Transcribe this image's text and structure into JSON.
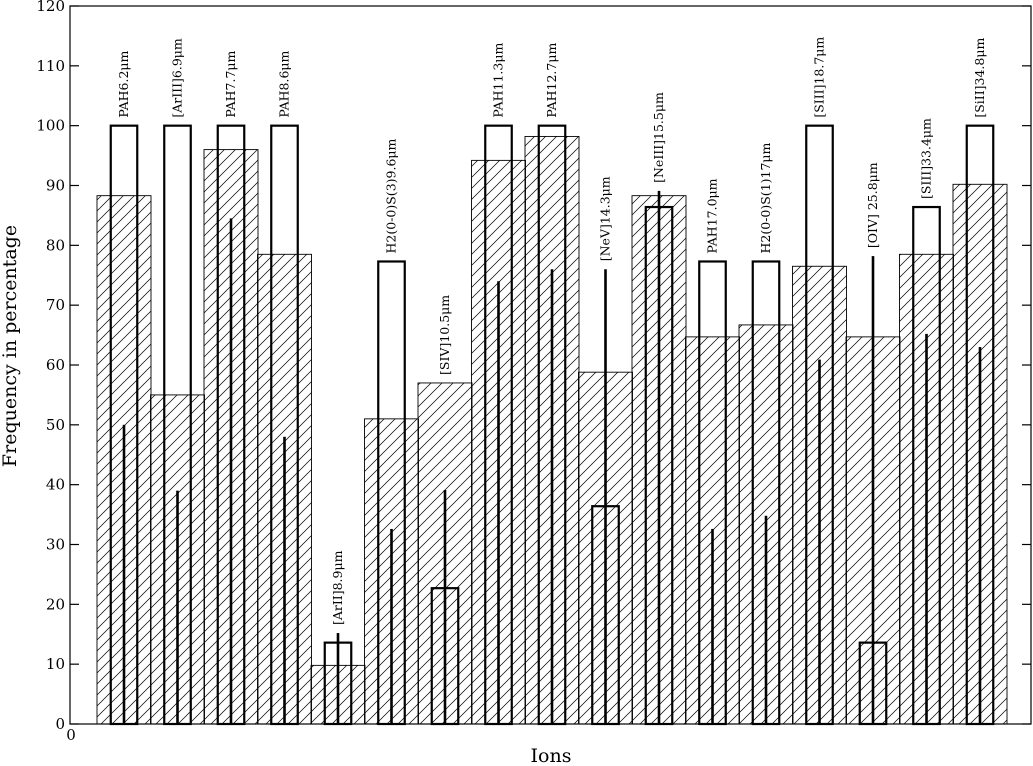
{
  "chart_data": {
    "type": "bar",
    "xlabel": "Ions",
    "ylabel": "Frequency in percentage",
    "ylim": [
      0,
      120
    ],
    "yticks": [
      0,
      10,
      20,
      30,
      40,
      50,
      60,
      70,
      80,
      90,
      100,
      110,
      120
    ],
    "x_origin_label": "0",
    "grid": false,
    "categories": [
      "PAH6.2μm",
      "[ArIII]6.9μm",
      "PAH7.7μm",
      "PAH8.6μm",
      "[ArII]8.9μm",
      "H2(0-0)S(3)9.6μm",
      "[SIV]10.5μm",
      "PAH11.3μm",
      "PAH12.7μm",
      "[NeV]14.3μm",
      "[NeIII]15.5μm",
      "PAH17.0μm",
      "H2(0-0)S(1)17μm",
      "[SIII]18.7μm",
      "[OIV] 25.8μm",
      "[SIII]33.4μm",
      "[SiII]34.8μm"
    ],
    "series": [
      {
        "style": "hatched-wide",
        "values": [
          88.3,
          55.0,
          96.0,
          78.5,
          9.8,
          51.0,
          57.0,
          94.2,
          98.2,
          58.8,
          88.3,
          64.7,
          66.7,
          76.5,
          64.7,
          78.5,
          90.2
        ]
      },
      {
        "style": "open-narrow",
        "values": [
          100,
          100,
          100,
          100,
          13.6,
          77.3,
          22.7,
          100,
          100,
          36.4,
          86.4,
          77.3,
          77.3,
          100,
          13.6,
          86.4,
          100
        ]
      },
      {
        "style": "thin-line",
        "values": [
          50.0,
          39.0,
          84.5,
          48.0,
          15.2,
          32.6,
          39.1,
          74.0,
          76.0,
          76.0,
          89.1,
          32.6,
          34.8,
          60.9,
          78.2,
          65.2,
          63.0
        ]
      }
    ]
  }
}
